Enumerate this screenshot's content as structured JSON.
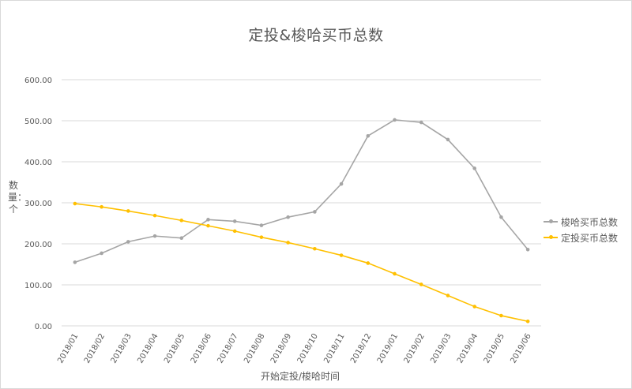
{
  "colors": {
    "suoha": "#a5a5a5",
    "dingtou": "#ffc000",
    "grid": "#d9d9d9",
    "text": "#595959"
  },
  "chart_data": {
    "type": "line",
    "title": "定投&梭哈买币总数",
    "xlabel": "开始定投/梭哈时间",
    "ylabel": "数量：个",
    "ylim": [
      0,
      600
    ],
    "y_ticks": [
      "0.00",
      "100.00",
      "200.00",
      "300.00",
      "400.00",
      "500.00",
      "600.00"
    ],
    "grid": true,
    "legend_position": "right",
    "categories": [
      "2018/01",
      "2018/02",
      "2018/03",
      "2018/04",
      "2018/05",
      "2018/06",
      "2018/07",
      "2018/08",
      "2018/09",
      "2018/10",
      "2018/11",
      "2018/12",
      "2019/01",
      "2019/02",
      "2019/03",
      "2019/04",
      "2019/05",
      "2019/06"
    ],
    "series": [
      {
        "name": "梭哈买币总数",
        "color": "#a5a5a5",
        "values": [
          155,
          177,
          205,
          219,
          214,
          259,
          255,
          245,
          265,
          278,
          346,
          463,
          502,
          496,
          454,
          384,
          265,
          186
        ]
      },
      {
        "name": "定投买币总数",
        "color": "#ffc000",
        "values": [
          298,
          290,
          280,
          269,
          257,
          244,
          231,
          216,
          203,
          188,
          172,
          153,
          127,
          101,
          74,
          47,
          25,
          11
        ]
      }
    ]
  }
}
